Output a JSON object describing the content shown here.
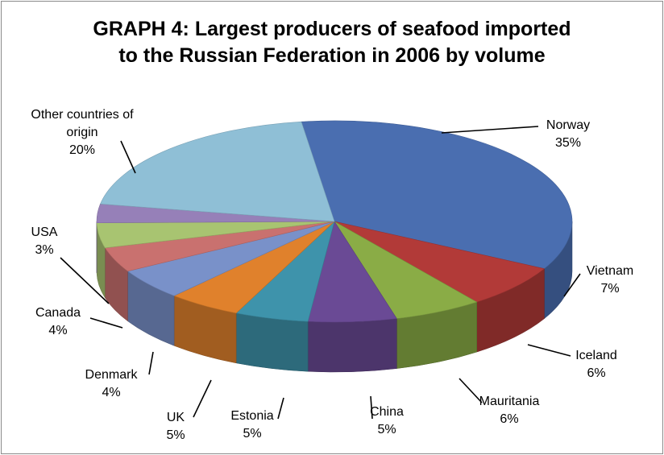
{
  "chart_data": {
    "type": "pie3d",
    "title": "GRAPH 4: Largest producers of seafood imported to the Russian Federation in 2006 by volume",
    "categories": [
      "Norway",
      "Vietnam",
      "Iceland",
      "Mauritania",
      "China",
      "Estonia",
      "UK",
      "Denmark",
      "Canada",
      "USA",
      "Other countries of origin"
    ],
    "values": [
      35,
      7,
      6,
      6,
      5,
      5,
      5,
      4,
      4,
      3,
      20
    ],
    "value_labels": [
      "35%",
      "7%",
      "6%",
      "6%",
      "5%",
      "5%",
      "5%",
      "4%",
      "4%",
      "3%",
      "20%"
    ],
    "colors": [
      "#4a6eb0",
      "#b23a38",
      "#8aac46",
      "#6a4a95",
      "#3e93ab",
      "#e0812c",
      "#7991c9",
      "#c9716f",
      "#a8c471",
      "#9680b8",
      "#8fbfd6"
    ]
  }
}
